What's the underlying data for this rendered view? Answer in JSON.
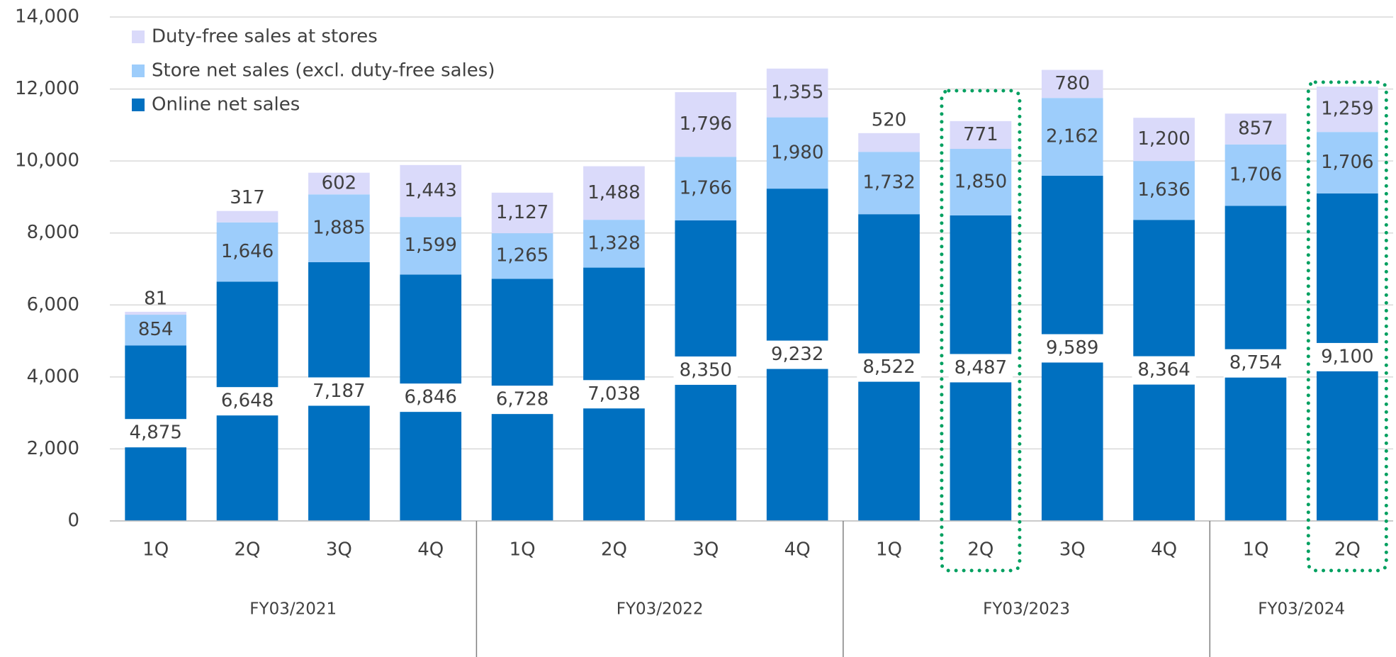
{
  "chart_data": {
    "type": "stacked_bar",
    "groups": [
      {
        "name": "FY03/2021",
        "categories": [
          "1Q",
          "2Q",
          "3Q",
          "4Q"
        ]
      },
      {
        "name": "FY03/2022",
        "categories": [
          "1Q",
          "2Q",
          "3Q",
          "4Q"
        ]
      },
      {
        "name": "FY03/2023",
        "categories": [
          "1Q",
          "2Q",
          "3Q",
          "4Q"
        ]
      },
      {
        "name": "FY03/2024",
        "categories": [
          "1Q",
          "2Q"
        ]
      }
    ],
    "series": [
      {
        "name": "Online net sales",
        "color": "#0070c0",
        "values": [
          4875,
          6648,
          7187,
          6846,
          6728,
          7038,
          8350,
          9232,
          8522,
          8487,
          9589,
          8364,
          8754,
          9100
        ],
        "value_labels": [
          "4,875",
          "6,648",
          "7,187",
          "6,846",
          "6,728",
          "7,038",
          "8,350",
          "9,232",
          "8,522",
          "8,487",
          "9,589",
          "8,364",
          "8,754",
          "9,100"
        ]
      },
      {
        "name": "Store net sales (excl. duty-free sales)",
        "color": "#9dcdfb",
        "values": [
          854,
          1646,
          1885,
          1599,
          1265,
          1328,
          1766,
          1980,
          1732,
          1850,
          2162,
          1636,
          1706,
          1706
        ],
        "value_labels": [
          "854",
          "1,646",
          "1,885",
          "1,599",
          "1,265",
          "1,328",
          "1,766",
          "1,980",
          "1,732",
          "1,850",
          "2,162",
          "1,636",
          "1,706",
          "1,706"
        ]
      },
      {
        "name": "Duty-free sales at stores",
        "color": "#dadafa",
        "values": [
          81,
          317,
          602,
          1443,
          1127,
          1488,
          1796,
          1355,
          520,
          771,
          780,
          1200,
          857,
          1259
        ],
        "value_labels": [
          "81",
          "317",
          "602",
          "1,443",
          "1,127",
          "1,488",
          "1,796",
          "1,355",
          "520",
          "771",
          "780",
          "1,200",
          "857",
          "1,259"
        ]
      }
    ],
    "ylim": [
      0,
      14000
    ],
    "yticks": [
      0,
      {
        "value": 2000,
        "label": "2,000"
      },
      {
        "value": 4000,
        "label": "4,000"
      },
      {
        "value": 6000,
        "label": "6,000"
      },
      {
        "value": 8000,
        "label": "8,000"
      },
      {
        "value": 10000,
        "label": "10,000"
      },
      {
        "value": 12000,
        "label": "12,000"
      },
      {
        "value": 14000,
        "label": "14,000"
      }
    ],
    "grid": true,
    "legend": "upper left"
  }
}
